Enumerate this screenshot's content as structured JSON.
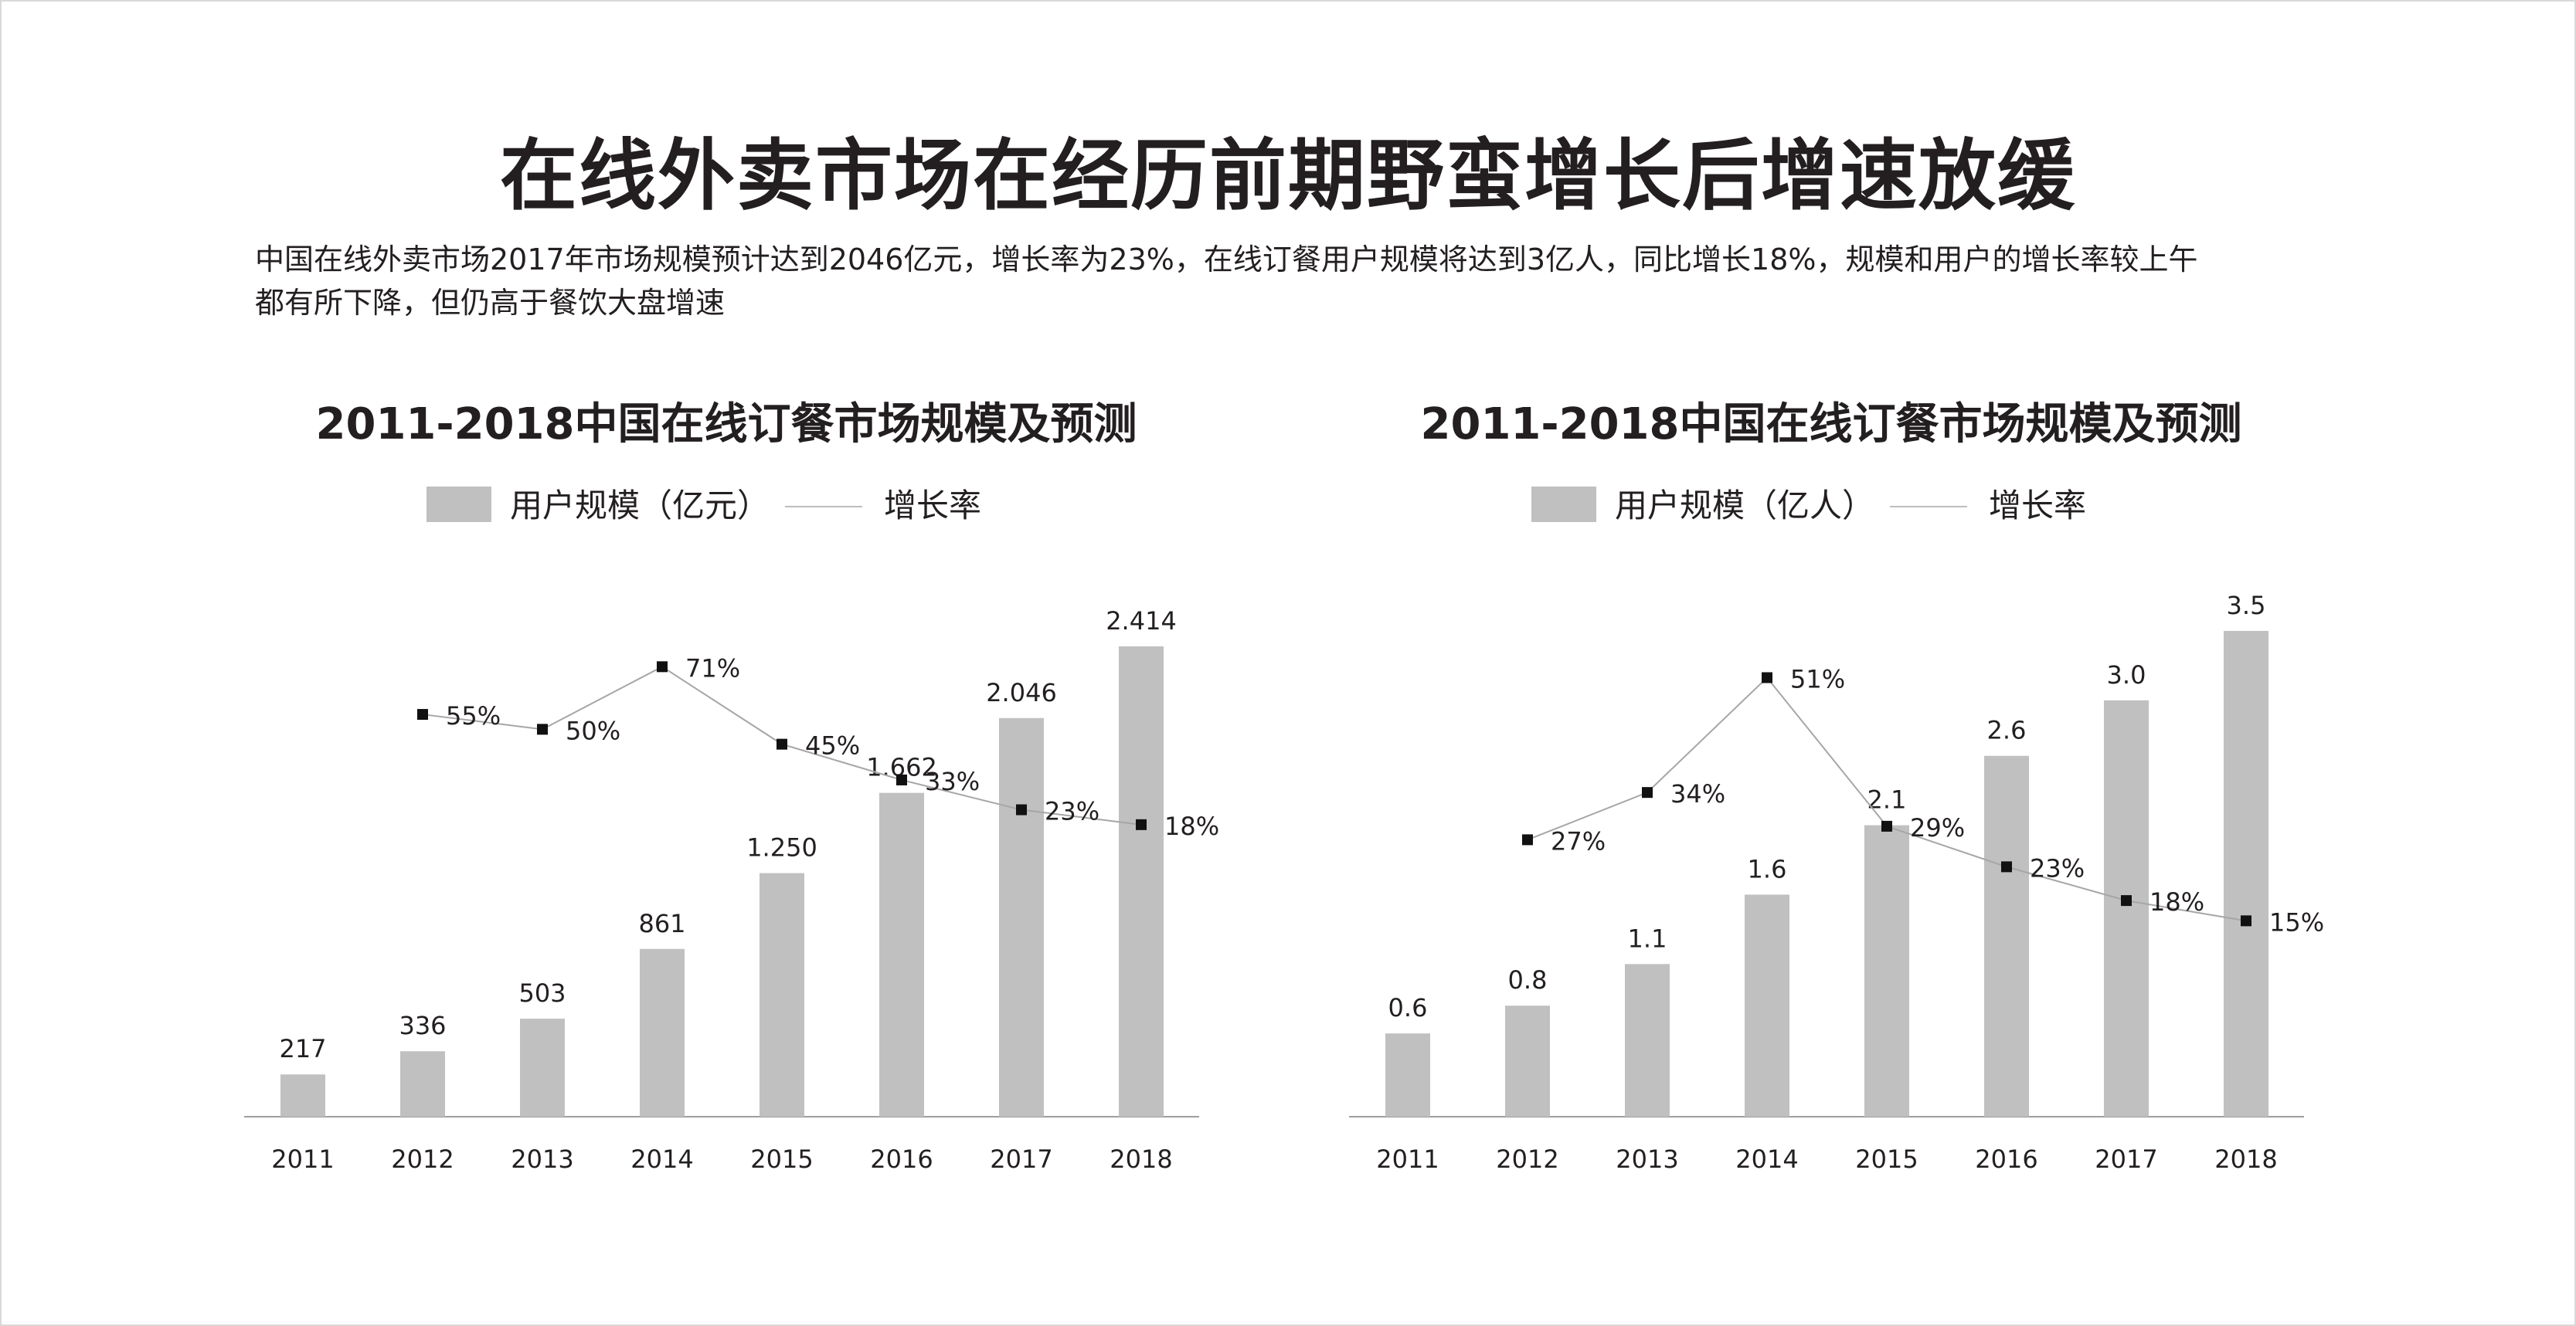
{
  "page": {
    "title": "在线外卖市场在经历前期野蛮增长后增速放缓",
    "subtitle_line1": "中国在线外卖市场2017年市场规模预计达到2046亿元，增长率为23%，在线订餐用户规模将达到3亿人，同比增长18%，规模和用户的增长率较上午",
    "subtitle_line2": "都有所下降，但仍高于餐饮大盘增速"
  },
  "colors": {
    "bar": "#c0c0c0",
    "line": "#a6a6a6",
    "marker": "#111111",
    "text": "#231f20"
  },
  "chart_data": [
    {
      "type": "bar",
      "title": "2011-2018中国在线订餐市场规模及预测",
      "legend": {
        "bar_label": "用户规模（亿元）",
        "line_label": "增长率",
        "placement": "top-center"
      },
      "categories": [
        "2011",
        "2012",
        "2013",
        "2014",
        "2015",
        "2016",
        "2017",
        "2018"
      ],
      "series": [
        {
          "name": "用户规模（亿元）",
          "type": "bar",
          "values": [
            217,
            336,
            503,
            861,
            1250,
            1662,
            2046,
            2414
          ],
          "labels": [
            "217",
            "336",
            "503",
            "861",
            "1.250",
            "1.662",
            "2.046",
            "2.414"
          ]
        },
        {
          "name": "增长率",
          "type": "line",
          "values": [
            null,
            55,
            50,
            71,
            45,
            33,
            23,
            18
          ],
          "labels": [
            "",
            "55%",
            "50%",
            "71%",
            "45%",
            "33%",
            "23%",
            "18%"
          ]
        }
      ],
      "bar_ylim": [
        0,
        2600
      ],
      "line_ylim": [
        -80,
        90
      ],
      "grid": false
    },
    {
      "type": "bar",
      "title": "2011-2018中国在线订餐市场规模及预测",
      "legend": {
        "bar_label": "用户规模（亿人）",
        "line_label": "增长率",
        "placement": "top-center"
      },
      "categories": [
        "2011",
        "2012",
        "2013",
        "2014",
        "2015",
        "2016",
        "2017",
        "2018"
      ],
      "series": [
        {
          "name": "用户规模（亿人）",
          "type": "bar",
          "values": [
            0.6,
            0.8,
            1.1,
            1.6,
            2.1,
            2.6,
            3.0,
            3.5
          ],
          "labels": [
            "0.6",
            "0.8",
            "1.1",
            "1.6",
            "2.1",
            "2.6",
            "3.0",
            "3.5"
          ]
        },
        {
          "name": "增长率",
          "type": "line",
          "values": [
            null,
            27,
            34,
            51,
            29,
            23,
            18,
            15
          ],
          "labels": [
            "",
            "27%",
            "34%",
            "51%",
            "29%",
            "23%",
            "18%",
            "15%"
          ]
        }
      ],
      "bar_ylim": [
        0,
        3.65
      ],
      "line_ylim": [
        -14,
        61
      ],
      "grid": false
    }
  ]
}
